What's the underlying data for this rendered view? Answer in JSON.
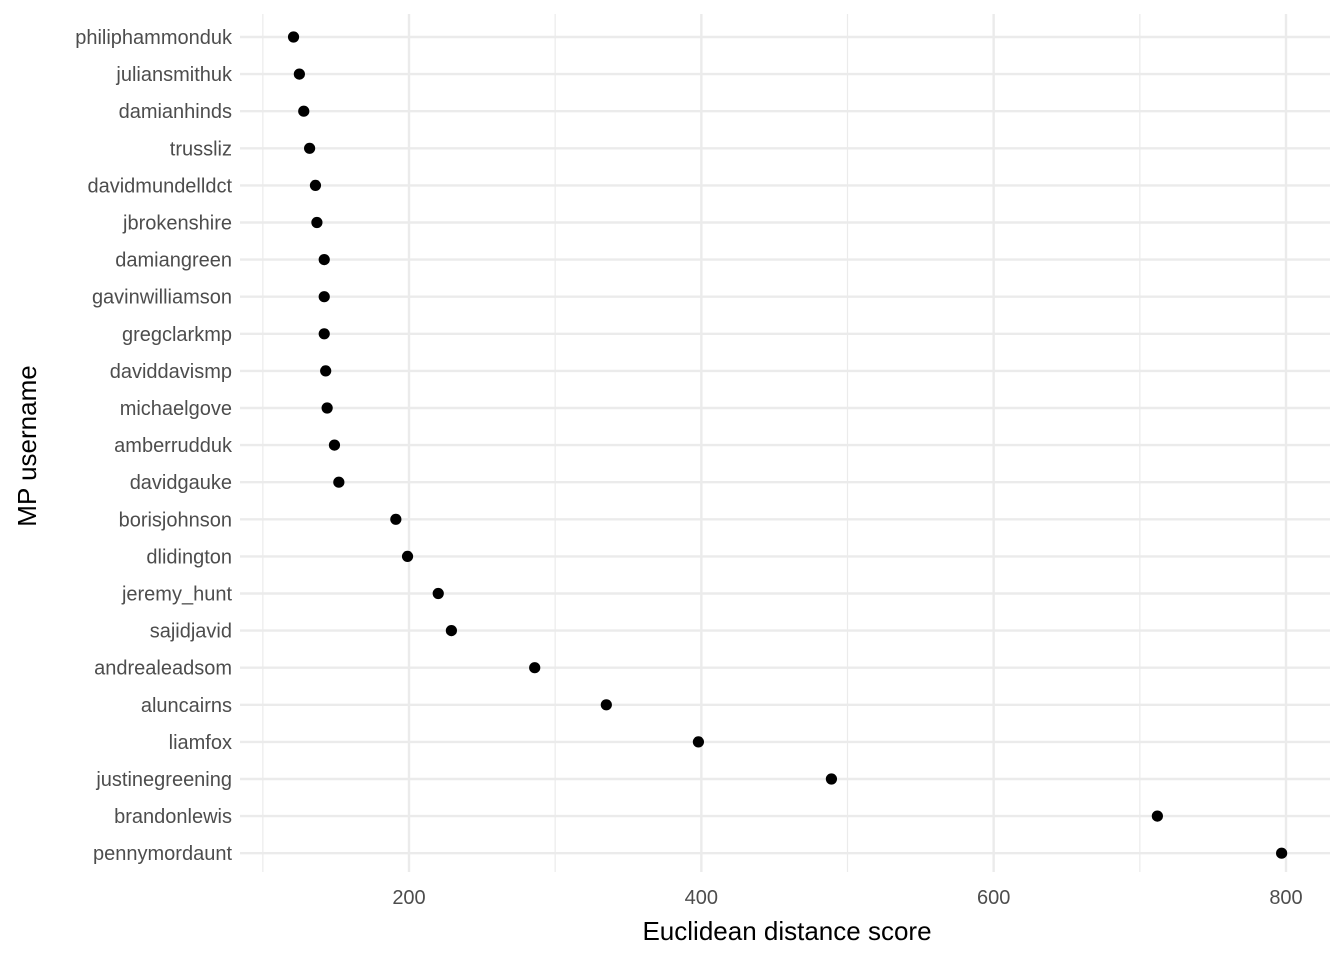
{
  "chart_data": {
    "type": "scatter",
    "orientation": "horizontal-dot",
    "title": "",
    "xlabel": "Euclidean distance score",
    "ylabel": "MP username",
    "xlim": [
      90,
      830
    ],
    "x_ticks": [
      200,
      400,
      600,
      800
    ],
    "grid": true,
    "legend": "none",
    "point_color": "#000000",
    "grid_color": "#ebebeb",
    "categories": [
      "philiphammonduk",
      "juliansmithuk",
      "damianhinds",
      "trussliz",
      "davidmundelldct",
      "jbrokenshire",
      "damiangreen",
      "gavinwilliamson",
      "gregclarkmp",
      "daviddavismp",
      "michaelgove",
      "amberrudduk",
      "davidgauke",
      "borisjohnson",
      "dlidington",
      "jeremy_hunt",
      "sajidjavid",
      "andrealeadsom",
      "aluncairns",
      "liamfox",
      "justinegreening",
      "brandonlewis",
      "pennymordaunt"
    ],
    "values": [
      121,
      125,
      128,
      132,
      136,
      137,
      142,
      142,
      142,
      143,
      144,
      149,
      152,
      191,
      199,
      220,
      229,
      286,
      335,
      398,
      489,
      712,
      797
    ]
  }
}
